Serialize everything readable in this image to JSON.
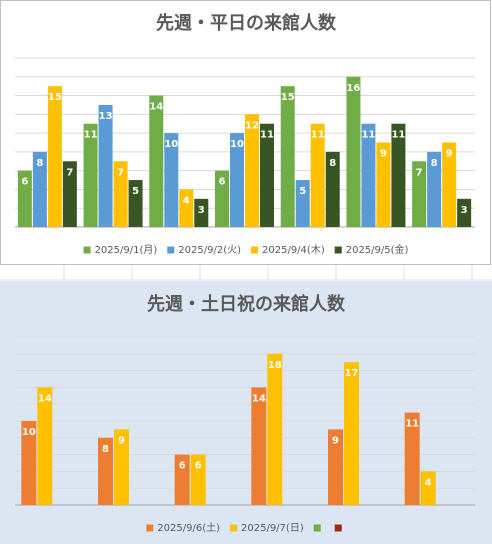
{
  "chart_data": [
    {
      "type": "bar",
      "title": "先週・平日の来館人数",
      "categories": [
        null,
        null,
        null,
        null,
        null,
        null,
        null
      ],
      "series": [
        {
          "name": "2025/9/1(月)",
          "color": "#70ad47",
          "values": [
            6,
            11,
            14,
            6,
            15,
            16,
            7
          ]
        },
        {
          "name": "2025/9/2(火)",
          "color": "#5b9bd5",
          "values": [
            8,
            13,
            10,
            10,
            5,
            11,
            8
          ]
        },
        {
          "name": "2025/9/4(木)",
          "color": "#ffc000",
          "values": [
            15,
            7,
            4,
            12,
            11,
            9,
            9
          ]
        },
        {
          "name": "2025/9/5(金)",
          "color": "#375623",
          "values": [
            7,
            5,
            3,
            11,
            8,
            11,
            3
          ]
        }
      ],
      "ylim": [
        0,
        18
      ],
      "yticks": [
        0,
        2,
        4,
        6,
        8,
        10,
        12,
        14,
        16,
        18
      ],
      "grid": true,
      "legend": "bottom"
    },
    {
      "type": "bar",
      "title": "先週・土日祝の来館人数",
      "categories": [
        null,
        null,
        null,
        null,
        null,
        null
      ],
      "series": [
        {
          "name": "2025/9/6(土)",
          "color": "#ed7d31",
          "values": [
            10,
            8,
            6,
            14,
            9,
            11
          ]
        },
        {
          "name": "2025/9/7(日)",
          "color": "#ffc000",
          "values": [
            14,
            9,
            6,
            18,
            17,
            4
          ]
        },
        {
          "name": null,
          "color": "#70ad47",
          "values": [
            null,
            null,
            null,
            null,
            null,
            null
          ]
        },
        {
          "name": null,
          "color": "#9e2a13",
          "values": [
            null,
            null,
            null,
            null,
            null,
            null
          ]
        }
      ],
      "ylim": [
        0,
        20
      ],
      "yticks": [
        0,
        2,
        4,
        6,
        8,
        10,
        12,
        14,
        16,
        18,
        20
      ],
      "grid": true,
      "legend": "bottom"
    }
  ]
}
